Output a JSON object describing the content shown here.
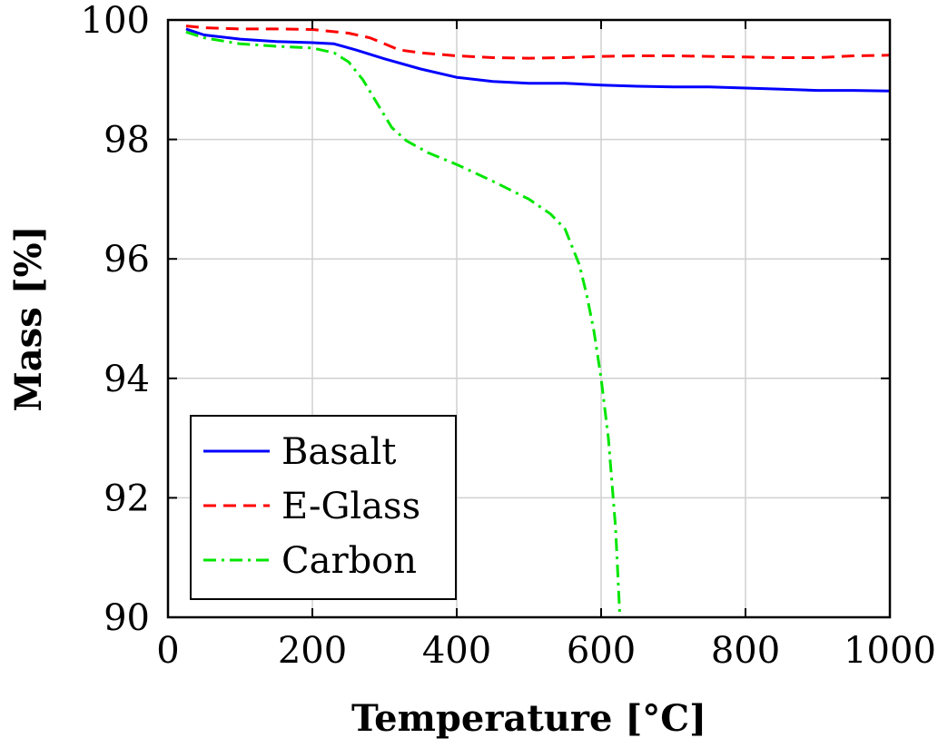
{
  "chart_data": {
    "type": "line",
    "xlabel": "Temperature [°C]",
    "ylabel": "Mass [%]",
    "xlim": [
      0,
      1000
    ],
    "ylim": [
      90,
      100
    ],
    "xticks": [
      0,
      200,
      400,
      600,
      800,
      1000
    ],
    "yticks": [
      90,
      92,
      94,
      96,
      98,
      100
    ],
    "grid": true,
    "legend_position": "bottom-left",
    "series": [
      {
        "name": "Basalt",
        "color": "#0000ff",
        "dash": "solid",
        "x": [
          25,
          50,
          100,
          150,
          200,
          230,
          260,
          300,
          350,
          400,
          450,
          500,
          550,
          600,
          650,
          700,
          750,
          800,
          850,
          900,
          950,
          1000
        ],
        "y": [
          99.85,
          99.75,
          99.68,
          99.64,
          99.62,
          99.6,
          99.5,
          99.35,
          99.18,
          99.04,
          98.97,
          98.94,
          98.94,
          98.91,
          98.89,
          98.88,
          98.88,
          98.86,
          98.84,
          98.82,
          98.82,
          98.81
        ]
      },
      {
        "name": "E-Glass",
        "color": "#ff0000",
        "dash": "dashed",
        "x": [
          25,
          50,
          100,
          150,
          200,
          250,
          280,
          300,
          320,
          350,
          400,
          450,
          500,
          550,
          600,
          650,
          700,
          750,
          800,
          850,
          900,
          950,
          1000
        ],
        "y": [
          99.9,
          99.87,
          99.85,
          99.85,
          99.84,
          99.78,
          99.7,
          99.6,
          99.5,
          99.45,
          99.4,
          99.37,
          99.36,
          99.37,
          99.39,
          99.4,
          99.4,
          99.39,
          99.38,
          99.37,
          99.37,
          99.4,
          99.41
        ]
      },
      {
        "name": "Carbon",
        "color": "#00e600",
        "dash": "dashdot",
        "x": [
          25,
          50,
          100,
          150,
          200,
          230,
          250,
          270,
          290,
          310,
          330,
          360,
          400,
          450,
          500,
          530,
          550,
          570,
          580,
          590,
          600,
          610,
          620,
          626
        ],
        "y": [
          99.8,
          99.7,
          99.6,
          99.56,
          99.53,
          99.45,
          99.3,
          99.0,
          98.6,
          98.2,
          97.98,
          97.78,
          97.58,
          97.3,
          97.0,
          96.75,
          96.5,
          95.9,
          95.4,
          94.8,
          94.0,
          93.0,
          91.5,
          90.0
        ]
      }
    ]
  }
}
